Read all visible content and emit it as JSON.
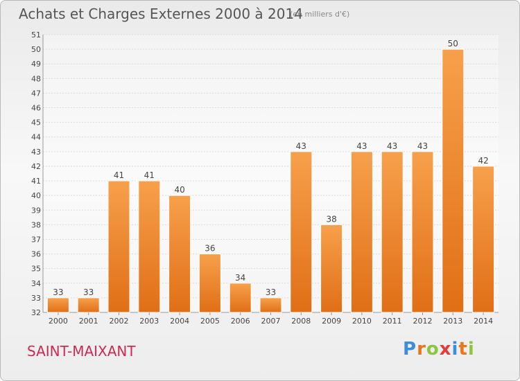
{
  "chart_data": {
    "type": "bar",
    "title": "Achats et Charges Externes 2000 à 2014",
    "subtitle": "(en milliers d'€)",
    "categories": [
      "2000",
      "2001",
      "2002",
      "2003",
      "2004",
      "2005",
      "2006",
      "2007",
      "2008",
      "2009",
      "2010",
      "2011",
      "2012",
      "2013",
      "2014"
    ],
    "values": [
      33,
      33,
      41,
      41,
      40,
      36,
      34,
      33,
      43,
      38,
      43,
      43,
      43,
      50,
      42
    ],
    "ylim": [
      32,
      51
    ],
    "yticks": [
      32,
      33,
      34,
      35,
      36,
      37,
      38,
      39,
      40,
      41,
      42,
      43,
      44,
      45,
      46,
      47,
      48,
      49,
      50,
      51
    ],
    "grid": true,
    "legend": "none",
    "bar_color": "#f08a2e"
  },
  "footer": {
    "city": "SAINT-MAIXANT",
    "logo": "Proxiti"
  },
  "colors": {
    "title": "#555555",
    "city": "#cc2a52",
    "logo_letters": [
      "#3b8ed8",
      "#e8761c",
      "#8cc63f",
      "#e33b3b",
      "#3b8ed8",
      "#e8761c",
      "#8cc63f"
    ]
  }
}
